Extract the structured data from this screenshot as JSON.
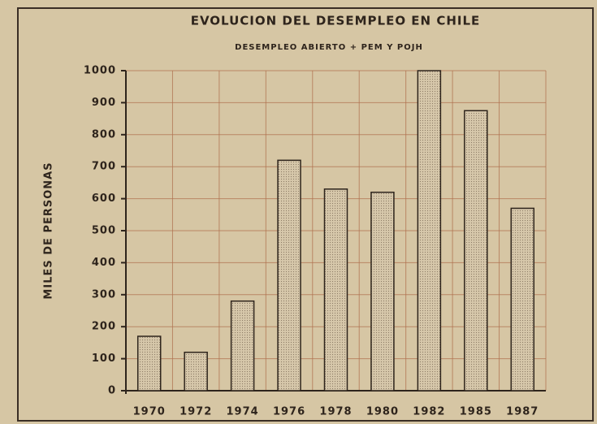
{
  "chart_data": {
    "type": "bar",
    "title": "EVOLUCION DEL DESEMPLEO EN CHILE",
    "subtitle": "DESEMPLEO ABIERTO + PEM Y POJH",
    "y_label": "MILES DE PERSONAS",
    "categories": [
      "1970",
      "1972",
      "1974",
      "1976",
      "1978",
      "1980",
      "1982",
      "1985",
      "1987"
    ],
    "values": [
      170,
      120,
      280,
      720,
      630,
      620,
      1000,
      875,
      570
    ],
    "color": "#d6c7aa",
    "ylim": [
      0,
      1000
    ],
    "yticks": [
      0,
      100,
      200,
      300,
      400,
      500,
      600,
      700,
      800,
      900,
      1000
    ],
    "grid": true
  }
}
